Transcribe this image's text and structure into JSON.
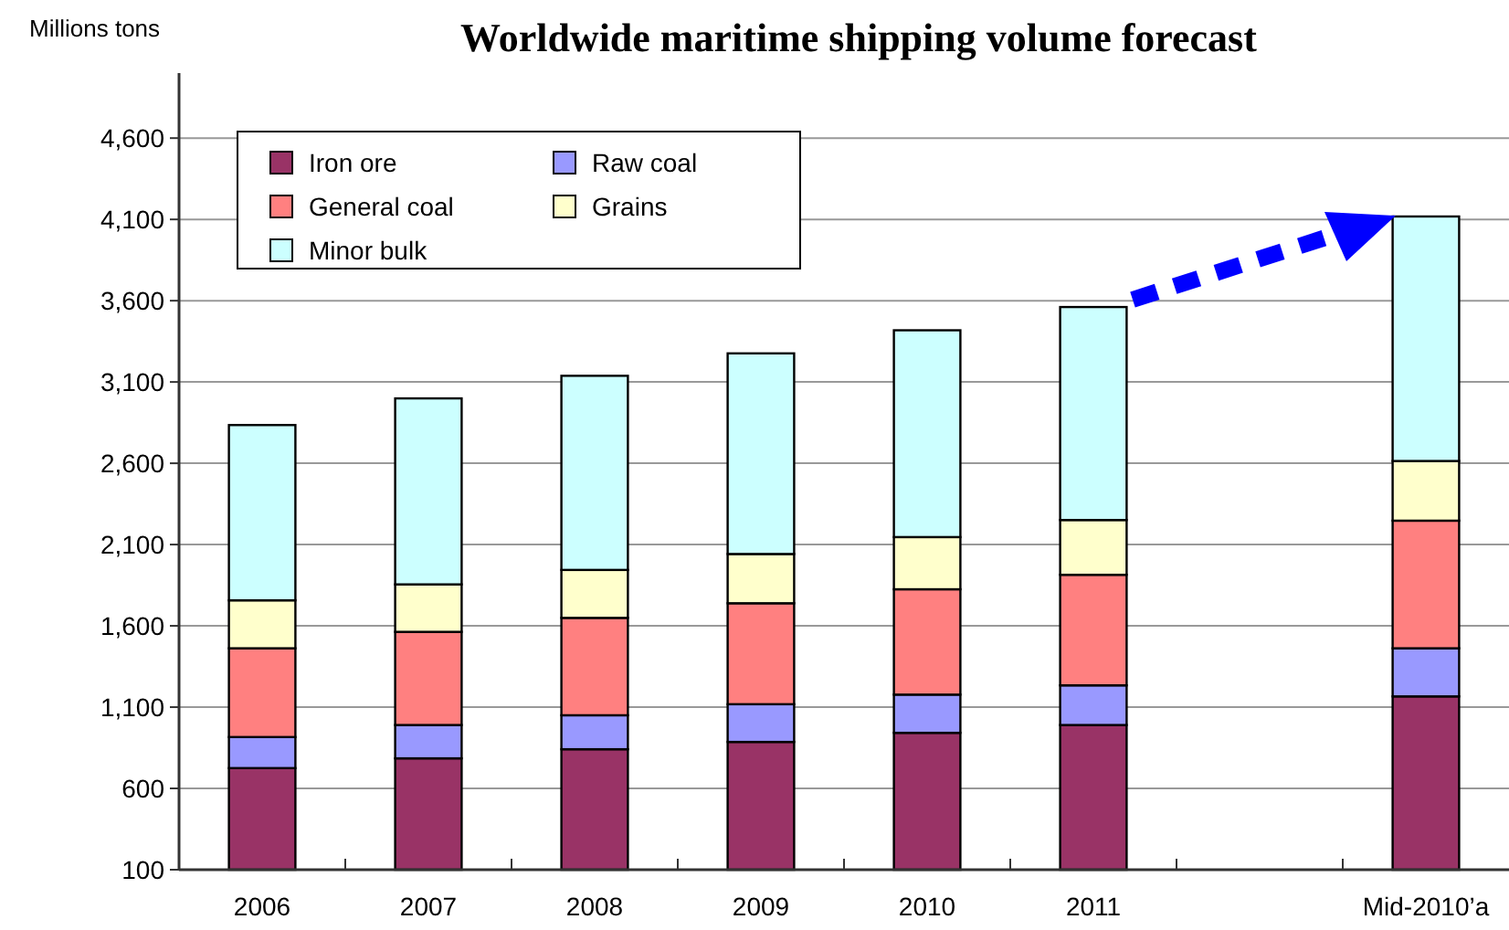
{
  "chart_data": {
    "type": "bar",
    "stacked": true,
    "title": "Worldwide maritime shipping volume forecast",
    "ylabel": "Millions tons",
    "categories": [
      "2006",
      "2007",
      "2008",
      "2009",
      "2010",
      "2011",
      null,
      "Mid-2010’a"
    ],
    "series": [
      {
        "name": "Iron ore",
        "color": "#993366",
        "values": [
          725,
          785,
          841,
          886,
          942,
          990,
          null,
          1166
        ]
      },
      {
        "name": "Raw coal",
        "color": "#9999ff",
        "values": [
          191,
          205,
          209,
          232,
          235,
          244,
          null,
          296
        ]
      },
      {
        "name": "General coal",
        "color": "#ff8080",
        "values": [
          546,
          573,
          599,
          621,
          648,
          680,
          null,
          785
        ]
      },
      {
        "name": "Grains",
        "color": "#ffffcc",
        "values": [
          295,
          292,
          295,
          303,
          321,
          337,
          null,
          367
        ]
      },
      {
        "name": "Minor bulk",
        "color": "#ccffff",
        "values": [
          1078,
          1144,
          1194,
          1234,
          1272,
          1310,
          null,
          1504
        ]
      }
    ],
    "ylim": [
      100,
      5000
    ],
    "yticks": [
      {
        "value": 100,
        "label": "100"
      },
      {
        "value": 600,
        "label": "600"
      },
      {
        "value": 1100,
        "label": "1,100"
      },
      {
        "value": 1600,
        "label": "1,600"
      },
      {
        "value": 2100,
        "label": "2,100"
      },
      {
        "value": 2600,
        "label": "2,600"
      },
      {
        "value": 3100,
        "label": "3,100"
      },
      {
        "value": 3600,
        "label": "3,600"
      },
      {
        "value": 4100,
        "label": "4,100"
      },
      {
        "value": 4600,
        "label": "4,600"
      }
    ],
    "grid": "y",
    "legend": "top left"
  }
}
